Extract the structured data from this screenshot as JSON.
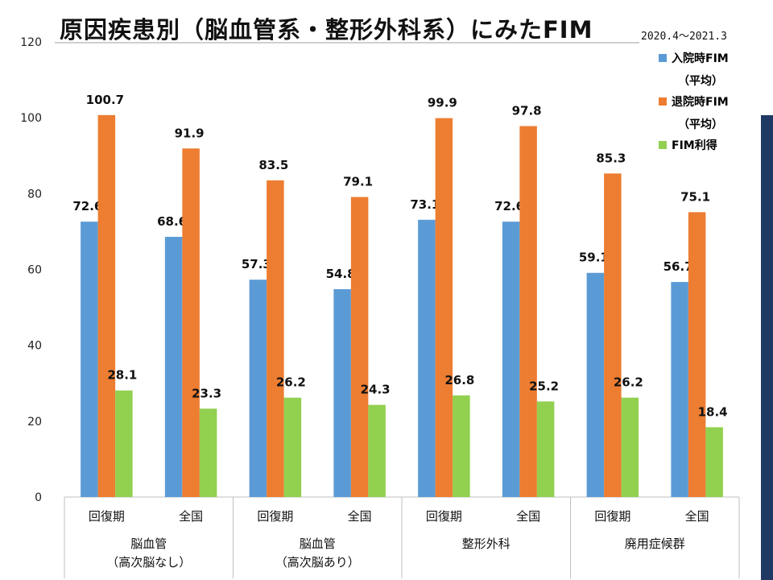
{
  "header": {
    "title": "原因疾患別（脳血管系・整形外科系）にみたFIM",
    "period": "2020.4～2021.3"
  },
  "chart_data": {
    "type": "bar",
    "ylim": [
      0,
      120
    ],
    "yticks": [
      0,
      20,
      40,
      60,
      80,
      100,
      120
    ],
    "grid": false,
    "legend_position": "top-right",
    "categories": [
      "回復期",
      "全国",
      "回復期",
      "全国",
      "回復期",
      "全国",
      "回復期",
      "全国"
    ],
    "groups": [
      {
        "label_line1": "脳血管",
        "label_line2": "（高次脳なし）"
      },
      {
        "label_line1": "脳血管",
        "label_line2": "（高次脳あり）"
      },
      {
        "label_line1": "整形外科",
        "label_line2": ""
      },
      {
        "label_line1": "廃用症候群",
        "label_line2": ""
      }
    ],
    "series": [
      {
        "name": "入院時FIM",
        "name_sub": "（平均）",
        "color": "#5b9bd5",
        "values": [
          72.6,
          68.6,
          57.3,
          54.8,
          73.1,
          72.6,
          59.1,
          56.7
        ]
      },
      {
        "name": "退院時FIM",
        "name_sub": "（平均）",
        "color": "#ed7d31",
        "values": [
          100.7,
          91.9,
          83.5,
          79.1,
          99.9,
          97.8,
          85.3,
          75.1
        ]
      },
      {
        "name": "FIM利得",
        "name_sub": "",
        "color": "#92d050",
        "values": [
          28.1,
          23.3,
          26.2,
          24.3,
          26.8,
          25.2,
          26.2,
          18.4
        ]
      }
    ]
  }
}
